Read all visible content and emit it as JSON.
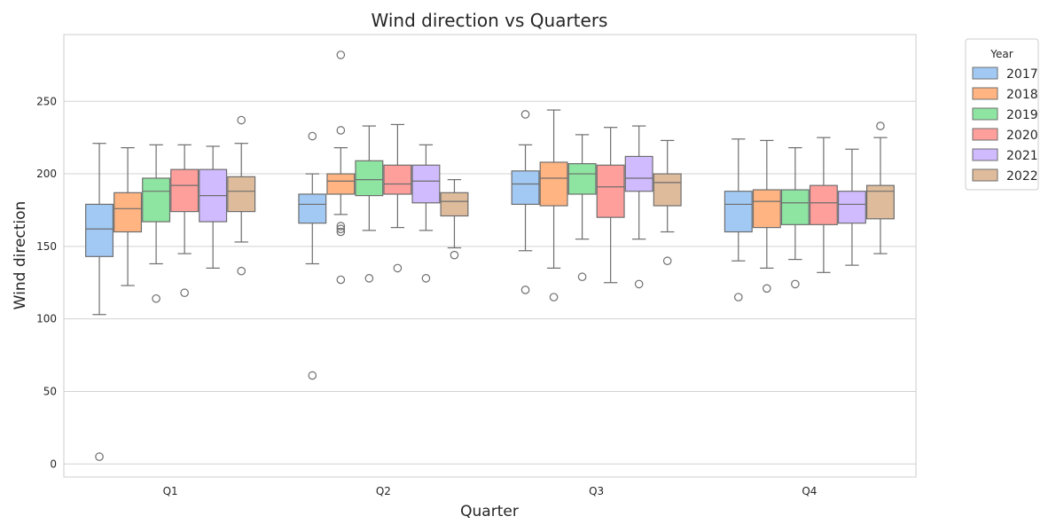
{
  "chart_data": {
    "type": "box",
    "title": "Wind direction vs Quarters",
    "xlabel": "Quarter",
    "ylabel": "Wind direction",
    "ylim": [
      -9,
      296
    ],
    "yticks": [
      0,
      50,
      100,
      150,
      200,
      250
    ],
    "grid": "horizontal",
    "legend": {
      "title": "Year",
      "placement": "outside-top-right",
      "entries": [
        "2017",
        "2018",
        "2019",
        "2020",
        "2021",
        "2022"
      ]
    },
    "colors": [
      "#a1c9f4",
      "#ffb482",
      "#8de5a1",
      "#ff9f9b",
      "#d0bbff",
      "#debb9b"
    ],
    "categories": [
      "Q1",
      "Q2",
      "Q3",
      "Q4"
    ],
    "series": [
      {
        "name": "2017",
        "boxes": [
          {
            "q1": 143,
            "median": 162,
            "q3": 179,
            "whisker_low": 103,
            "whisker_high": 221,
            "outliers": [
              5
            ]
          },
          {
            "q1": 166,
            "median": 179,
            "q3": 186,
            "whisker_low": 138,
            "whisker_high": 200,
            "outliers": [
              61,
              226
            ]
          },
          {
            "q1": 179,
            "median": 193,
            "q3": 202,
            "whisker_low": 147,
            "whisker_high": 220,
            "outliers": [
              120,
              241
            ]
          },
          {
            "q1": 160,
            "median": 179,
            "q3": 188,
            "whisker_low": 140,
            "whisker_high": 224,
            "outliers": [
              115
            ]
          }
        ]
      },
      {
        "name": "2018",
        "boxes": [
          {
            "q1": 160,
            "median": 176,
            "q3": 187,
            "whisker_low": 123,
            "whisker_high": 218,
            "outliers": []
          },
          {
            "q1": 186,
            "median": 195,
            "q3": 200,
            "whisker_low": 172,
            "whisker_high": 218,
            "outliers": [
              127,
              160,
              162,
              164,
              230,
              282
            ]
          },
          {
            "q1": 178,
            "median": 197,
            "q3": 208,
            "whisker_low": 135,
            "whisker_high": 244,
            "outliers": [
              115
            ]
          },
          {
            "q1": 163,
            "median": 181,
            "q3": 189,
            "whisker_low": 135,
            "whisker_high": 223,
            "outliers": [
              121
            ]
          }
        ]
      },
      {
        "name": "2019",
        "boxes": [
          {
            "q1": 167,
            "median": 188,
            "q3": 197,
            "whisker_low": 138,
            "whisker_high": 220,
            "outliers": [
              114
            ]
          },
          {
            "q1": 185,
            "median": 196,
            "q3": 209,
            "whisker_low": 161,
            "whisker_high": 233,
            "outliers": [
              128
            ]
          },
          {
            "q1": 186,
            "median": 200,
            "q3": 207,
            "whisker_low": 155,
            "whisker_high": 227,
            "outliers": [
              129
            ]
          },
          {
            "q1": 165,
            "median": 180,
            "q3": 189,
            "whisker_low": 141,
            "whisker_high": 218,
            "outliers": [
              124
            ]
          }
        ]
      },
      {
        "name": "2020",
        "boxes": [
          {
            "q1": 174,
            "median": 192,
            "q3": 203,
            "whisker_low": 145,
            "whisker_high": 220,
            "outliers": [
              118
            ]
          },
          {
            "q1": 186,
            "median": 193,
            "q3": 206,
            "whisker_low": 163,
            "whisker_high": 234,
            "outliers": [
              135
            ]
          },
          {
            "q1": 170,
            "median": 191,
            "q3": 206,
            "whisker_low": 125,
            "whisker_high": 232,
            "outliers": []
          },
          {
            "q1": 165,
            "median": 180,
            "q3": 192,
            "whisker_low": 132,
            "whisker_high": 225,
            "outliers": []
          }
        ]
      },
      {
        "name": "2021",
        "boxes": [
          {
            "q1": 167,
            "median": 185,
            "q3": 203,
            "whisker_low": 135,
            "whisker_high": 219,
            "outliers": []
          },
          {
            "q1": 180,
            "median": 195,
            "q3": 206,
            "whisker_low": 161,
            "whisker_high": 220,
            "outliers": [
              128
            ]
          },
          {
            "q1": 188,
            "median": 197,
            "q3": 212,
            "whisker_low": 155,
            "whisker_high": 233,
            "outliers": [
              124
            ]
          },
          {
            "q1": 166,
            "median": 179,
            "q3": 188,
            "whisker_low": 137,
            "whisker_high": 217,
            "outliers": []
          }
        ]
      },
      {
        "name": "2022",
        "boxes": [
          {
            "q1": 174,
            "median": 188,
            "q3": 198,
            "whisker_low": 153,
            "whisker_high": 221,
            "outliers": [
              133,
              237
            ]
          },
          {
            "q1": 171,
            "median": 181,
            "q3": 187,
            "whisker_low": 149,
            "whisker_high": 196,
            "outliers": [
              144
            ]
          },
          {
            "q1": 178,
            "median": 194,
            "q3": 200,
            "whisker_low": 160,
            "whisker_high": 223,
            "outliers": [
              140
            ]
          },
          {
            "q1": 169,
            "median": 188,
            "q3": 192,
            "whisker_low": 145,
            "whisker_high": 225,
            "outliers": [
              233
            ]
          }
        ]
      }
    ]
  }
}
